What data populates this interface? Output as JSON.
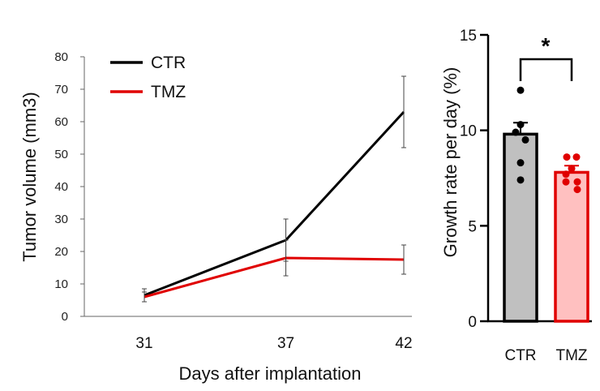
{
  "chart_data": [
    {
      "type": "line",
      "title": "",
      "xlabel": "Days after implantation",
      "ylabel": "Tumor volume (mm3)",
      "x": [
        31,
        37,
        42
      ],
      "x_tick_labels": [
        "31",
        "37",
        "42"
      ],
      "ylim": [
        0,
        80
      ],
      "y_ticks": [
        0,
        10,
        20,
        30,
        40,
        50,
        60,
        70,
        80
      ],
      "y_tick_labels": [
        "0",
        "10",
        "20",
        "30",
        "40",
        "50",
        "60",
        "70",
        "80"
      ],
      "grid": false,
      "legend_position": "top-left",
      "series": [
        {
          "name": "CTR",
          "color": "#000000",
          "values": [
            6.5,
            23.5,
            63
          ],
          "error": [
            2,
            6.5,
            11
          ]
        },
        {
          "name": "TMZ",
          "color": "#e00000",
          "values": [
            6,
            18,
            17.5
          ],
          "error": [
            1.5,
            5.5,
            4.5
          ]
        }
      ]
    },
    {
      "type": "bar",
      "title": "",
      "xlabel": "",
      "ylabel": "Growth rate per day (%)",
      "categories": [
        "CTR",
        "TMZ"
      ],
      "values": [
        9.8,
        7.8
      ],
      "error": [
        0.6,
        0.35
      ],
      "ylim": [
        0,
        15
      ],
      "y_ticks": [
        0,
        5,
        10,
        15
      ],
      "y_tick_labels": [
        "0",
        "5",
        "10",
        "15"
      ],
      "bar_fill_colors": [
        "#c0c0c0",
        "#ffc0c0"
      ],
      "bar_edge_colors": [
        "#000000",
        "#e00000"
      ],
      "point_colors": [
        "#000000",
        "#e00000"
      ],
      "points": [
        [
          12.1,
          10.3,
          9.9,
          9.5,
          8.3,
          7.4
        ],
        [
          8.6,
          8.6,
          8.0,
          7.7,
          7.3,
          7.3,
          6.9
        ]
      ],
      "significance": "*",
      "grid": false
    }
  ]
}
